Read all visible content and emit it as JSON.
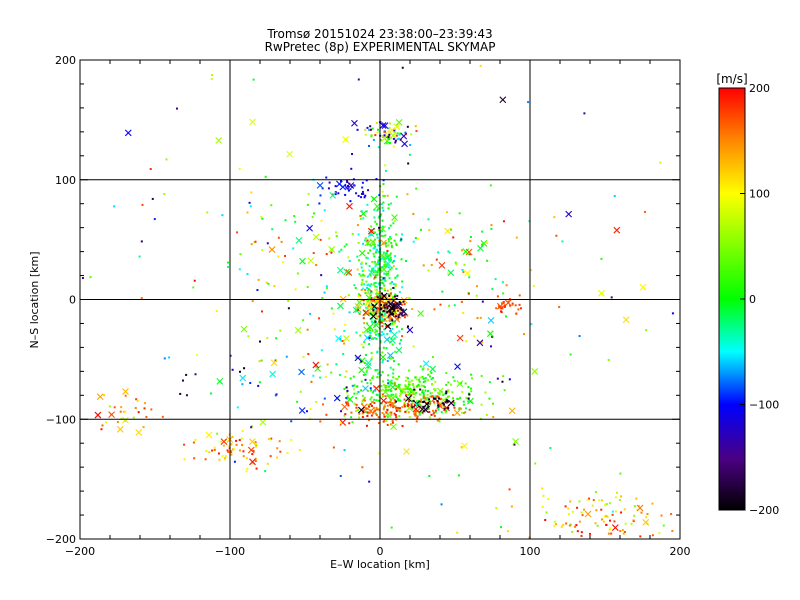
{
  "chart_data": {
    "type": "scatter",
    "title_line1": "Tromsø 20151024 23:38:00–23:39:43",
    "title_line2": "RwPretec (8p) EXPERIMENTAL SKYMAP",
    "xlabel": "E–W location [km]",
    "ylabel": "N–S location [km]",
    "xlim": [
      -200,
      200
    ],
    "ylim": [
      -200,
      200
    ],
    "x_ticks": [
      "−200",
      "−100",
      "0",
      "100",
      "200"
    ],
    "y_ticks": [
      "−200",
      "−100",
      "0",
      "100",
      "200"
    ],
    "grid": true,
    "colorbar": {
      "label": "[m/s]",
      "range": [
        -200,
        200
      ],
      "ticks": [
        "−200",
        "−100",
        "0",
        "100",
        "200"
      ]
    },
    "clusters": [
      {
        "cx": 0,
        "cy": 10,
        "sx": 7,
        "sy": 35,
        "n": 420,
        "vmin": -60,
        "vmax": 40,
        "crosses": 30
      },
      {
        "cx": 2,
        "cy": -5,
        "sx": 8,
        "sy": 7,
        "n": 140,
        "vmin": 90,
        "vmax": 200,
        "crosses": 12
      },
      {
        "cx": 8,
        "cy": -8,
        "sx": 6,
        "sy": 6,
        "n": 50,
        "vmin": -200,
        "vmax": -160,
        "crosses": 14
      },
      {
        "cx": 22,
        "cy": -78,
        "sx": 22,
        "sy": 10,
        "n": 300,
        "vmin": -20,
        "vmax": 70,
        "crosses": 20
      },
      {
        "cx": 15,
        "cy": -92,
        "sx": 22,
        "sy": 6,
        "n": 150,
        "vmin": 140,
        "vmax": 200,
        "crosses": 12
      },
      {
        "cx": 35,
        "cy": -85,
        "sx": 10,
        "sy": 4,
        "n": 30,
        "vmin": -200,
        "vmax": -170,
        "crosses": 6
      },
      {
        "cx": 5,
        "cy": 138,
        "sx": 10,
        "sy": 6,
        "n": 60,
        "vmin": -200,
        "vmax": 200,
        "crosses": 12
      },
      {
        "cx": -20,
        "cy": 95,
        "sx": 10,
        "sy": 6,
        "n": 40,
        "vmin": -140,
        "vmax": -80,
        "crosses": 4
      },
      {
        "cx": -95,
        "cy": -125,
        "sx": 15,
        "sy": 7,
        "n": 70,
        "vmin": 80,
        "vmax": 200,
        "crosses": 6
      },
      {
        "cx": 150,
        "cy": -185,
        "sx": 30,
        "sy": 12,
        "n": 120,
        "vmin": 40,
        "vmax": 200,
        "crosses": 10
      },
      {
        "cx": 85,
        "cy": -5,
        "sx": 5,
        "sy": 3,
        "n": 25,
        "vmin": 160,
        "vmax": 200,
        "crosses": 2
      },
      {
        "cx": -40,
        "cy": 40,
        "sx": 35,
        "sy": 25,
        "n": 80,
        "vmin": -60,
        "vmax": 200,
        "crosses": 14
      },
      {
        "cx": -30,
        "cy": -55,
        "sx": 40,
        "sy": 25,
        "n": 70,
        "vmin": -200,
        "vmax": 200,
        "crosses": 20
      },
      {
        "cx": -170,
        "cy": -95,
        "sx": 12,
        "sy": 8,
        "n": 25,
        "vmin": 60,
        "vmax": 200,
        "crosses": 8
      },
      {
        "cx": 60,
        "cy": 30,
        "sx": 30,
        "sy": 30,
        "n": 60,
        "vmin": -40,
        "vmax": 200,
        "crosses": 10
      },
      {
        "cx": 0,
        "cy": 0,
        "sx": 110,
        "sy": 110,
        "n": 160,
        "vmin": -200,
        "vmax": 200,
        "crosses": 30
      }
    ]
  }
}
